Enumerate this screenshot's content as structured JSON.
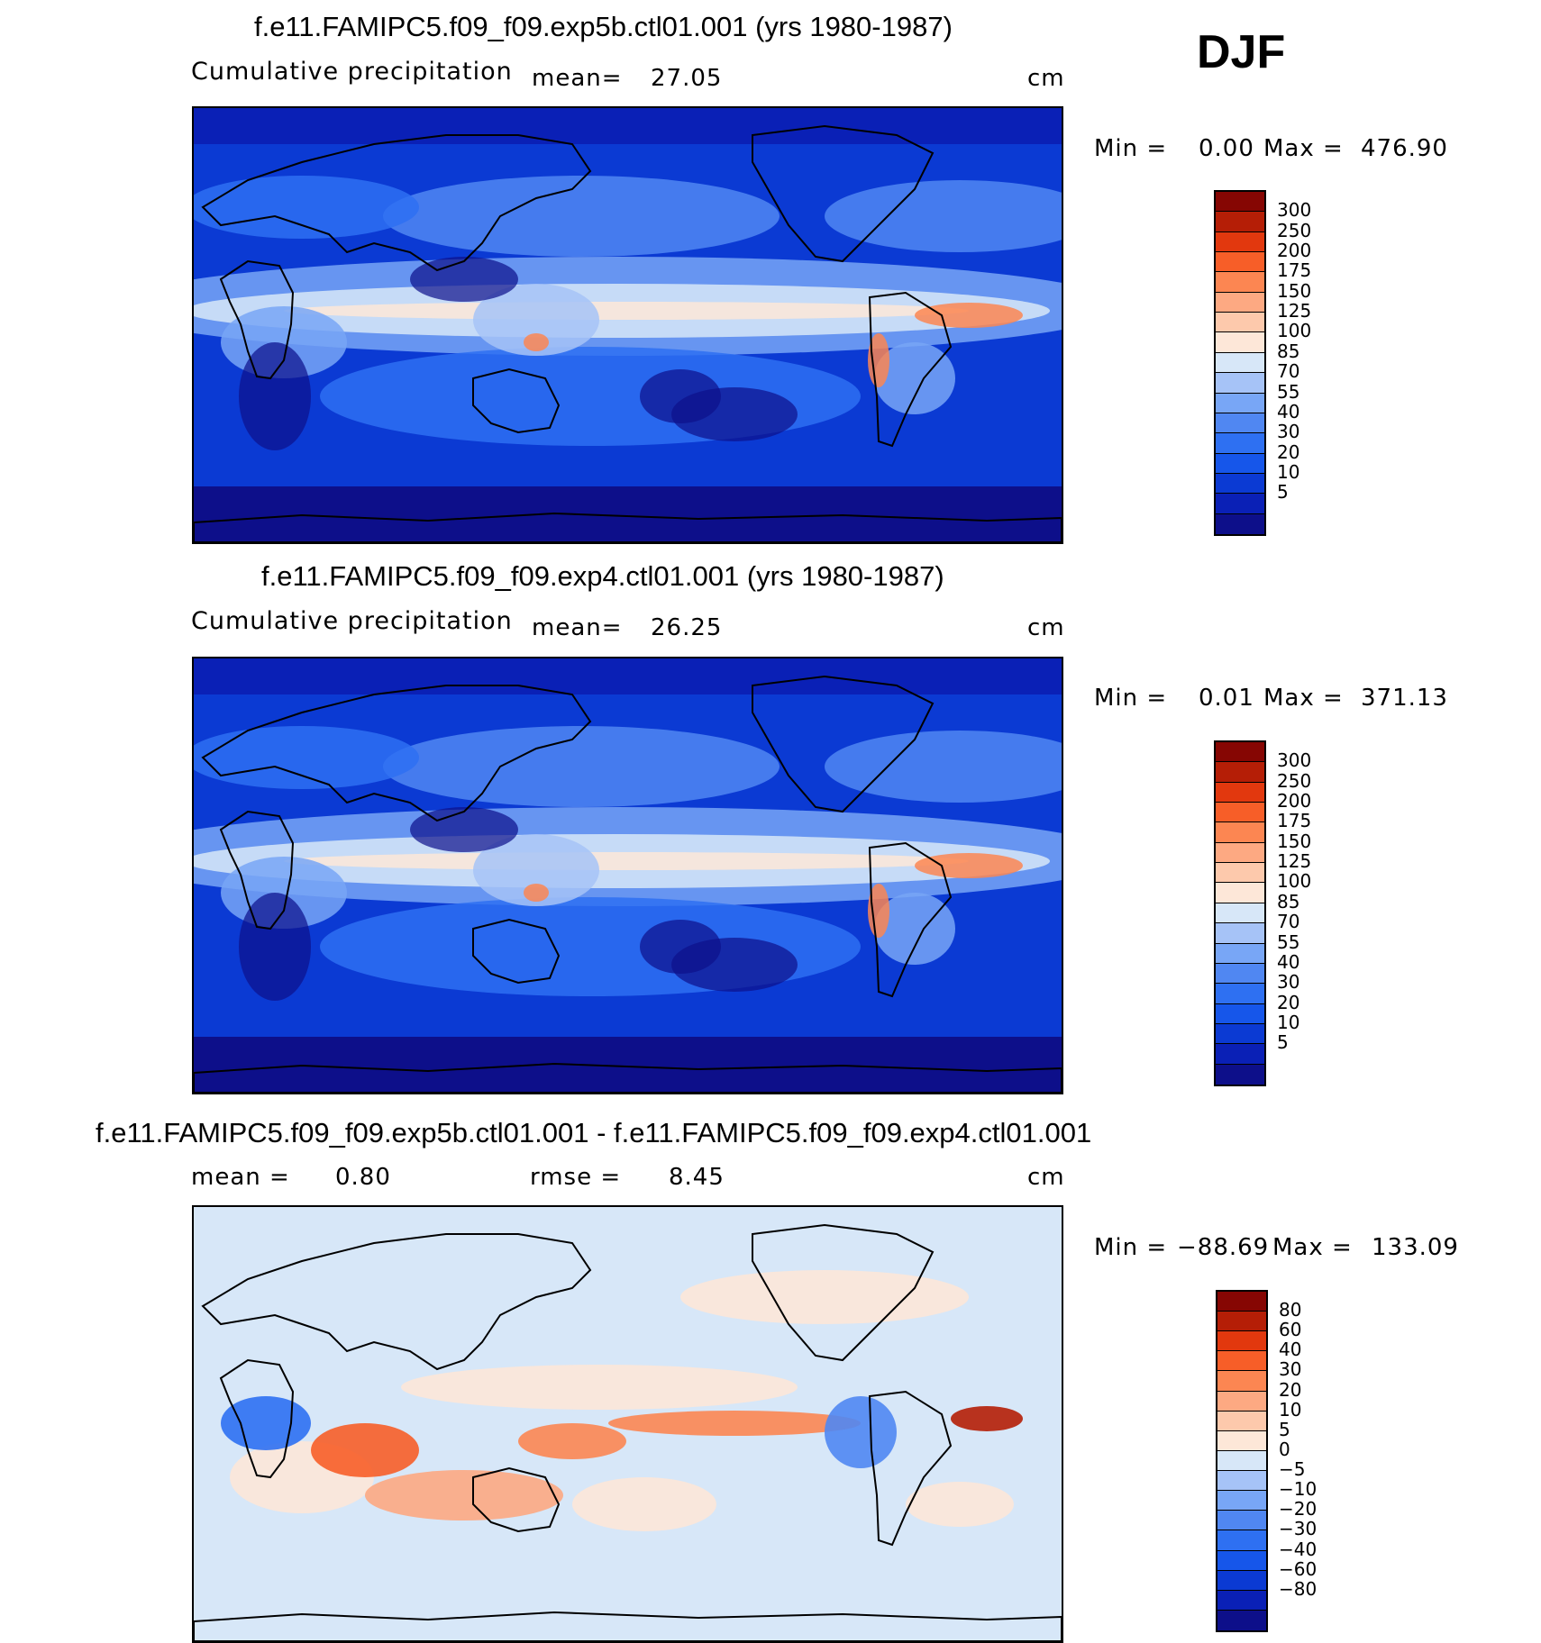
{
  "season_label": "DJF",
  "palettes": {
    "precip": [
      "#0d0f8a",
      "#0a20b6",
      "#0b3ad3",
      "#1656ea",
      "#2e70f2",
      "#5087f2",
      "#78a6f6",
      "#a6c3f7",
      "#d7e7f8",
      "#fde7d8",
      "#fdc9ac",
      "#fda982",
      "#fc8652",
      "#f75e28",
      "#e2380e",
      "#b51e06",
      "#860603"
    ],
    "diff": [
      "#0d0f8a",
      "#0a20b6",
      "#0b3ad3",
      "#1656ea",
      "#2e70f2",
      "#5087f2",
      "#78a6f6",
      "#a6c3f7",
      "#d7e7f8",
      "#fde7d8",
      "#fdc9ac",
      "#fda982",
      "#fc8652",
      "#f75e28",
      "#e2380e",
      "#b51e06",
      "#860603"
    ]
  },
  "panels": [
    {
      "title": "f.e11.FAMIPC5.f09_f09.exp5b.ctl01.001 (yrs 1980-1987)",
      "left_label": "Cumulative precipitation",
      "mean_label": "mean=",
      "mean_value": "27.05",
      "units": "cm",
      "min_label": "Min =",
      "min_value": "0.00",
      "max_label": "Max =",
      "max_value": "476.90",
      "colorbar_labels": [
        "300",
        "250",
        "200",
        "175",
        "150",
        "125",
        "100",
        "85",
        "70",
        "55",
        "40",
        "30",
        "20",
        "10",
        "5"
      ]
    },
    {
      "title": "f.e11.FAMIPC5.f09_f09.exp4.ctl01.001 (yrs 1980-1987)",
      "left_label": "Cumulative precipitation",
      "mean_label": "mean=",
      "mean_value": "26.25",
      "units": "cm",
      "min_label": "Min =",
      "min_value": "0.01",
      "max_label": "Max =",
      "max_value": "371.13",
      "colorbar_labels": [
        "300",
        "250",
        "200",
        "175",
        "150",
        "125",
        "100",
        "85",
        "70",
        "55",
        "40",
        "30",
        "20",
        "10",
        "5"
      ]
    },
    {
      "title": "f.e11.FAMIPC5.f09_f09.exp5b.ctl01.001 - f.e11.FAMIPC5.f09_f09.exp4.ctl01.001",
      "mean_label": "mean =",
      "mean_value": "0.80",
      "rmse_label": "rmse =",
      "rmse_value": "8.45",
      "units": "cm",
      "min_label": "Min =",
      "min_value": "−88.69",
      "max_label": "Max =",
      "max_value": "133.09",
      "colorbar_labels": [
        "80",
        "60",
        "40",
        "30",
        "20",
        "10",
        "5",
        "0",
        "−5",
        "−10",
        "−20",
        "−30",
        "−40",
        "−60",
        "−80"
      ]
    }
  ],
  "chart_data": [
    {
      "type": "heatmap",
      "title": "f.e11.FAMIPC5.f09_f09.exp5b.ctl01.001 (yrs 1980-1987)",
      "variable": "Cumulative precipitation",
      "units": "cm",
      "season": "DJF",
      "mean": 27.05,
      "min": 0.0,
      "max": 476.9,
      "levels": [
        5,
        10,
        20,
        30,
        40,
        55,
        70,
        85,
        100,
        125,
        150,
        175,
        200,
        250,
        300
      ]
    },
    {
      "type": "heatmap",
      "title": "f.e11.FAMIPC5.f09_f09.exp4.ctl01.001 (yrs 1980-1987)",
      "variable": "Cumulative precipitation",
      "units": "cm",
      "season": "DJF",
      "mean": 26.25,
      "min": 0.01,
      "max": 371.13,
      "levels": [
        5,
        10,
        20,
        30,
        40,
        55,
        70,
        85,
        100,
        125,
        150,
        175,
        200,
        250,
        300
      ]
    },
    {
      "type": "heatmap",
      "title": "f.e11.FAMIPC5.f09_f09.exp5b.ctl01.001 - f.e11.FAMIPC5.f09_f09.exp4.ctl01.001",
      "units": "cm",
      "season": "DJF",
      "mean": 0.8,
      "rmse": 8.45,
      "min": -88.69,
      "max": 133.09,
      "levels": [
        -80,
        -60,
        -40,
        -30,
        -20,
        -10,
        -5,
        0,
        5,
        10,
        20,
        30,
        40,
        60,
        80
      ]
    }
  ]
}
